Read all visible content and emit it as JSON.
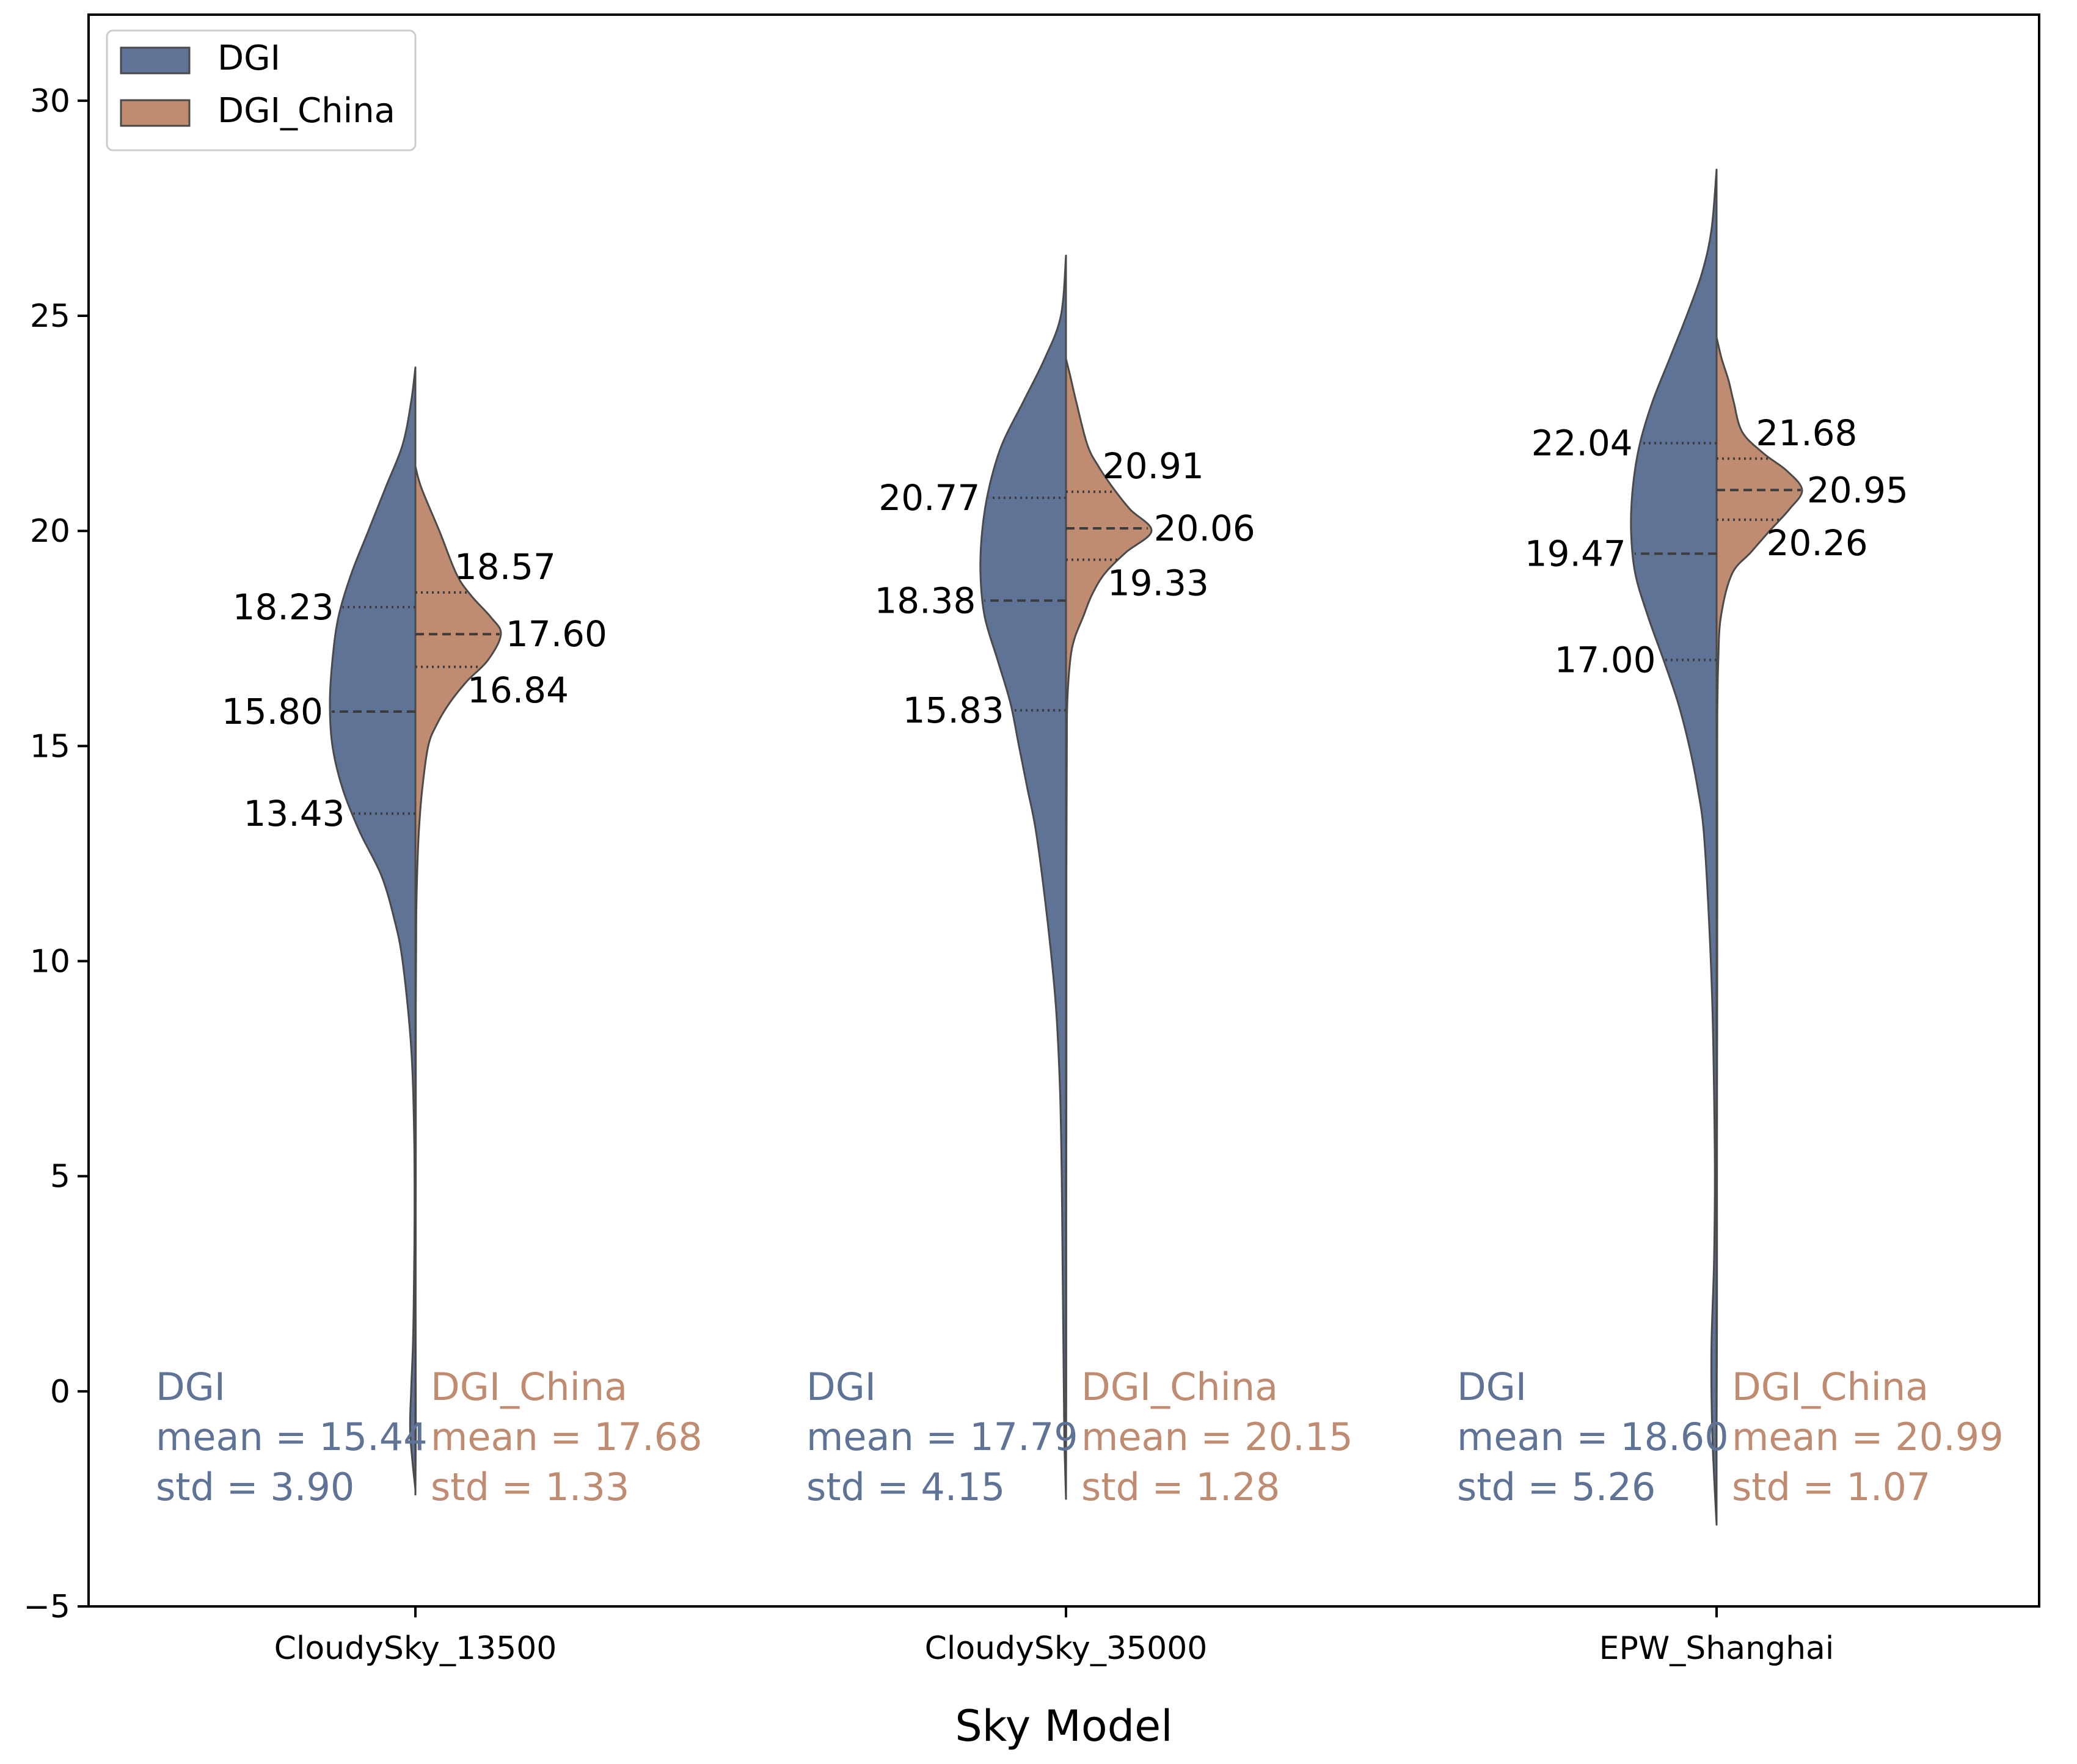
{
  "chart_data": {
    "type": "violin",
    "split": true,
    "xlabel": "Sky Model",
    "ylabel": "",
    "ylim": [
      -5,
      32
    ],
    "yticks": [
      -5,
      0,
      5,
      10,
      15,
      20,
      25,
      30
    ],
    "grid": false,
    "legend": {
      "placement": "top-left",
      "entries": [
        "DGI",
        "DGI_China"
      ]
    },
    "colors": {
      "DGI": "#5f7397",
      "DGI_China": "#c08c71",
      "outline": "#4a4a4a"
    },
    "categories": [
      "CloudySky_13500",
      "CloudySky_35000",
      "EPW_Shanghai"
    ],
    "series": [
      {
        "name": "DGI",
        "side": "left",
        "groups": [
          {
            "category": "CloudySky_13500",
            "quartiles": [
              13.43,
              15.8,
              18.23
            ],
            "quartile_labels": [
              "13.43",
              "15.80",
              "18.23"
            ],
            "range": [
              -2.3,
              23.8
            ],
            "profile": [
              [
                -2.3,
                0.0
              ],
              [
                -1,
                0.06
              ],
              [
                0,
                0.05
              ],
              [
                1,
                0.03
              ],
              [
                2,
                0.02
              ],
              [
                4,
                0.01
              ],
              [
                6,
                0.015
              ],
              [
                8,
                0.05
              ],
              [
                10,
                0.15
              ],
              [
                11,
                0.25
              ],
              [
                12,
                0.4
              ],
              [
                13,
                0.65
              ],
              [
                14,
                0.85
              ],
              [
                15,
                0.97
              ],
              [
                16,
                1.0
              ],
              [
                17,
                0.97
              ],
              [
                18,
                0.9
              ],
              [
                19,
                0.75
              ],
              [
                20,
                0.55
              ],
              [
                21,
                0.35
              ],
              [
                22,
                0.15
              ],
              [
                23,
                0.05
              ],
              [
                23.8,
                0.0
              ]
            ],
            "stats": {
              "label": "DGI",
              "mean": "mean = 15.44",
              "std": "std = 3.90"
            }
          },
          {
            "category": "CloudySky_35000",
            "quartiles": [
              15.83,
              18.38,
              20.77
            ],
            "quartile_labels": [
              "15.83",
              "18.38",
              "20.77"
            ],
            "range": [
              -2.5,
              26.4
            ],
            "profile": [
              [
                -2.5,
                0.0
              ],
              [
                -1,
                0.02
              ],
              [
                1,
                0.03
              ],
              [
                3,
                0.04
              ],
              [
                5,
                0.05
              ],
              [
                7,
                0.07
              ],
              [
                9,
                0.12
              ],
              [
                11,
                0.22
              ],
              [
                13,
                0.35
              ],
              [
                14,
                0.45
              ],
              [
                15,
                0.55
              ],
              [
                16,
                0.65
              ],
              [
                17,
                0.8
              ],
              [
                18,
                0.95
              ],
              [
                19,
                1.0
              ],
              [
                20,
                0.98
              ],
              [
                21,
                0.9
              ],
              [
                22,
                0.75
              ],
              [
                23,
                0.5
              ],
              [
                24,
                0.25
              ],
              [
                25,
                0.06
              ],
              [
                26.4,
                0.0
              ]
            ],
            "stats": {
              "label": "DGI",
              "mean": "mean = 17.79",
              "std": "std = 4.15"
            }
          },
          {
            "category": "EPW_Shanghai",
            "quartiles": [
              17.0,
              19.47,
              22.04
            ],
            "quartile_labels": [
              "17.00",
              "19.47",
              "22.04"
            ],
            "range": [
              -3.1,
              28.4
            ],
            "profile": [
              [
                -3.1,
                0.0
              ],
              [
                -1,
                0.05
              ],
              [
                1,
                0.06
              ],
              [
                3,
                0.03
              ],
              [
                5,
                0.02
              ],
              [
                7,
                0.03
              ],
              [
                9,
                0.05
              ],
              [
                11,
                0.09
              ],
              [
                13,
                0.15
              ],
              [
                14,
                0.22
              ],
              [
                15,
                0.32
              ],
              [
                16,
                0.45
              ],
              [
                17,
                0.62
              ],
              [
                18,
                0.8
              ],
              [
                19,
                0.95
              ],
              [
                20,
                1.0
              ],
              [
                21,
                0.98
              ],
              [
                22,
                0.9
              ],
              [
                23,
                0.75
              ],
              [
                24,
                0.55
              ],
              [
                25,
                0.35
              ],
              [
                26,
                0.17
              ],
              [
                27,
                0.06
              ],
              [
                28.4,
                0.0
              ]
            ],
            "stats": {
              "label": "DGI",
              "mean": "mean = 18.60",
              "std": "std = 5.26"
            }
          }
        ]
      },
      {
        "name": "DGI_China",
        "side": "right",
        "groups": [
          {
            "category": "CloudySky_13500",
            "quartiles": [
              16.84,
              17.6,
              18.57
            ],
            "quartile_labels": [
              "16.84",
              "17.60",
              "18.57"
            ],
            "range": [
              -2.4,
              21.5
            ],
            "profile": [
              [
                -2.4,
                0.0
              ],
              [
                -1,
                0.005
              ],
              [
                2,
                0.003
              ],
              [
                6,
                0.005
              ],
              [
                9,
                0.005
              ],
              [
                11,
                0.01
              ],
              [
                12,
                0.02
              ],
              [
                13,
                0.04
              ],
              [
                14,
                0.08
              ],
              [
                15,
                0.15
              ],
              [
                15.5,
                0.25
              ],
              [
                16,
                0.4
              ],
              [
                16.5,
                0.6
              ],
              [
                17,
                0.85
              ],
              [
                17.6,
                1.0
              ],
              [
                18,
                0.88
              ],
              [
                18.5,
                0.65
              ],
              [
                19,
                0.48
              ],
              [
                20,
                0.28
              ],
              [
                21,
                0.07
              ],
              [
                21.5,
                0.0
              ]
            ],
            "stats": {
              "label": "DGI_China",
              "mean": "mean = 17.68",
              "std": "std = 1.33"
            }
          },
          {
            "category": "CloudySky_35000",
            "quartiles": [
              19.33,
              20.06,
              20.91
            ],
            "quartile_labels": [
              "19.33",
              "20.06",
              "20.91"
            ],
            "range": [
              -2.5,
              24.0
            ],
            "profile": [
              [
                -2.5,
                0.0
              ],
              [
                0,
                0.003
              ],
              [
                4,
                0.003
              ],
              [
                8,
                0.005
              ],
              [
                12,
                0.005
              ],
              [
                15,
                0.01
              ],
              [
                16,
                0.015
              ],
              [
                17,
                0.05
              ],
              [
                17.5,
                0.1
              ],
              [
                18,
                0.2
              ],
              [
                18.5,
                0.3
              ],
              [
                19,
                0.45
              ],
              [
                19.5,
                0.7
              ],
              [
                20,
                1.0
              ],
              [
                20.5,
                0.75
              ],
              [
                21,
                0.55
              ],
              [
                21.5,
                0.38
              ],
              [
                22,
                0.25
              ],
              [
                23,
                0.12
              ],
              [
                23.6,
                0.05
              ],
              [
                24,
                0.0
              ]
            ],
            "stats": {
              "label": "DGI_China",
              "mean": "mean = 20.15",
              "std": "std = 1.28"
            }
          },
          {
            "category": "EPW_Shanghai",
            "quartiles": [
              20.26,
              20.95,
              21.68
            ],
            "quartile_labels": [
              "20.26",
              "20.95",
              "21.68"
            ],
            "range": [
              -1.0,
              24.5
            ],
            "profile": [
              [
                -1.0,
                0.0
              ],
              [
                2,
                0.005
              ],
              [
                6,
                0.005
              ],
              [
                10,
                0.008
              ],
              [
                15,
                0.008
              ],
              [
                16,
                0.01
              ],
              [
                17,
                0.02
              ],
              [
                18,
                0.05
              ],
              [
                19,
                0.18
              ],
              [
                19.5,
                0.4
              ],
              [
                20,
                0.62
              ],
              [
                20.5,
                0.85
              ],
              [
                20.95,
                1.0
              ],
              [
                21.4,
                0.82
              ],
              [
                21.8,
                0.55
              ],
              [
                22.3,
                0.3
              ],
              [
                23,
                0.2
              ],
              [
                23.5,
                0.14
              ],
              [
                24,
                0.06
              ],
              [
                24.5,
                0.0
              ]
            ],
            "stats": {
              "label": "DGI_China",
              "mean": "mean = 20.99",
              "std": "std = 1.07"
            }
          }
        ]
      }
    ]
  }
}
